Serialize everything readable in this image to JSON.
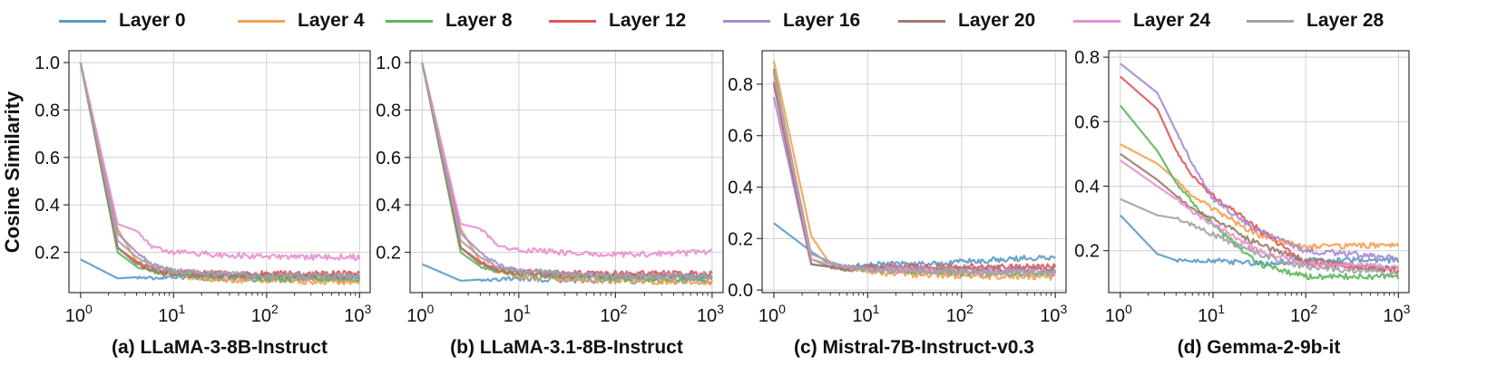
{
  "legend": [
    "Layer 0",
    "Layer 4",
    "Layer 8",
    "Layer 12",
    "Layer 16",
    "Layer 20",
    "Layer 24",
    "Layer 28"
  ],
  "colors": [
    "#5b9bc7",
    "#f6a04d",
    "#5cb85c",
    "#e15759",
    "#a98bd1",
    "#9c7b6e",
    "#e990cf",
    "#a3a3a3"
  ],
  "ylabel": "Cosine Similarity",
  "chart_data": [
    {
      "type": "line",
      "title": "(a) LLaMA-3-8B-Instruct",
      "xscale": "log",
      "xlim": [
        0.75,
        1300
      ],
      "ylim": [
        0.03,
        1.05
      ],
      "yticks": [
        0.2,
        0.4,
        0.6,
        0.8,
        1.0
      ],
      "grid": true,
      "series": [
        {
          "name": "Layer 0",
          "x": [
            1,
            2.5,
            4,
            6,
            10,
            30,
            100,
            1000
          ],
          "y": [
            0.17,
            0.09,
            0.095,
            0.09,
            0.1,
            0.09,
            0.085,
            0.085
          ]
        },
        {
          "name": "Layer 4",
          "x": [
            1,
            2.5,
            4,
            6,
            10,
            30,
            100,
            1000
          ],
          "y": [
            1.0,
            0.3,
            0.16,
            0.12,
            0.1,
            0.085,
            0.08,
            0.075
          ]
        },
        {
          "name": "Layer 8",
          "x": [
            1,
            2.5,
            4,
            6,
            10,
            30,
            100,
            1000
          ],
          "y": [
            1.0,
            0.2,
            0.14,
            0.12,
            0.11,
            0.1,
            0.09,
            0.09
          ]
        },
        {
          "name": "Layer 12",
          "x": [
            1,
            2.5,
            4,
            6,
            10,
            30,
            100,
            1000
          ],
          "y": [
            1.0,
            0.22,
            0.16,
            0.13,
            0.12,
            0.11,
            0.11,
            0.11
          ]
        },
        {
          "name": "Layer 16",
          "x": [
            1,
            2.5,
            4,
            6,
            10,
            30,
            100,
            1000
          ],
          "y": [
            1.0,
            0.28,
            0.2,
            0.15,
            0.12,
            0.11,
            0.1,
            0.1
          ]
        },
        {
          "name": "Layer 20",
          "x": [
            1,
            2.5,
            4,
            6,
            10,
            30,
            100,
            1000
          ],
          "y": [
            1.0,
            0.22,
            0.15,
            0.12,
            0.11,
            0.1,
            0.1,
            0.1
          ]
        },
        {
          "name": "Layer 24",
          "x": [
            1,
            2.5,
            4,
            6,
            10,
            30,
            100,
            1000
          ],
          "y": [
            1.0,
            0.32,
            0.29,
            0.22,
            0.2,
            0.19,
            0.18,
            0.18
          ]
        },
        {
          "name": "Layer 28",
          "x": [
            1,
            2.5,
            4,
            6,
            10,
            30,
            100,
            1000
          ],
          "y": [
            1.0,
            0.25,
            0.18,
            0.14,
            0.12,
            0.11,
            0.1,
            0.1
          ]
        }
      ]
    },
    {
      "type": "line",
      "title": "(b) LLaMA-3.1-8B-Instruct",
      "xscale": "log",
      "xlim": [
        0.75,
        1300
      ],
      "ylim": [
        0.03,
        1.05
      ],
      "yticks": [
        0.2,
        0.4,
        0.6,
        0.8,
        1.0
      ],
      "grid": true,
      "series": [
        {
          "name": "Layer 0",
          "x": [
            1,
            2.5,
            4,
            6,
            10,
            30,
            100,
            1000
          ],
          "y": [
            0.15,
            0.08,
            0.085,
            0.085,
            0.09,
            0.085,
            0.08,
            0.08
          ]
        },
        {
          "name": "Layer 4",
          "x": [
            1,
            2.5,
            4,
            6,
            10,
            30,
            100,
            1000
          ],
          "y": [
            1.0,
            0.3,
            0.16,
            0.12,
            0.1,
            0.085,
            0.08,
            0.075
          ]
        },
        {
          "name": "Layer 8",
          "x": [
            1,
            2.5,
            4,
            6,
            10,
            30,
            100,
            1000
          ],
          "y": [
            1.0,
            0.2,
            0.14,
            0.12,
            0.11,
            0.1,
            0.09,
            0.09
          ]
        },
        {
          "name": "Layer 12",
          "x": [
            1,
            2.5,
            4,
            6,
            10,
            30,
            100,
            1000
          ],
          "y": [
            1.0,
            0.22,
            0.16,
            0.13,
            0.12,
            0.11,
            0.11,
            0.11
          ]
        },
        {
          "name": "Layer 16",
          "x": [
            1,
            2.5,
            4,
            6,
            10,
            30,
            100,
            1000
          ],
          "y": [
            1.0,
            0.28,
            0.2,
            0.15,
            0.12,
            0.11,
            0.1,
            0.1
          ]
        },
        {
          "name": "Layer 20",
          "x": [
            1,
            2.5,
            4,
            6,
            10,
            30,
            100,
            1000
          ],
          "y": [
            1.0,
            0.22,
            0.15,
            0.12,
            0.11,
            0.1,
            0.1,
            0.1
          ]
        },
        {
          "name": "Layer 24",
          "x": [
            1,
            2.5,
            4,
            6,
            10,
            30,
            100,
            1000
          ],
          "y": [
            1.0,
            0.32,
            0.3,
            0.23,
            0.21,
            0.2,
            0.19,
            0.2
          ]
        },
        {
          "name": "Layer 28",
          "x": [
            1,
            2.5,
            4,
            6,
            10,
            30,
            100,
            1000
          ],
          "y": [
            1.0,
            0.25,
            0.18,
            0.14,
            0.12,
            0.11,
            0.1,
            0.1
          ]
        }
      ]
    },
    {
      "type": "line",
      "title": "(c) Mistral-7B-Instruct-v0.3",
      "xscale": "log",
      "xlim": [
        0.75,
        1300
      ],
      "ylim": [
        -0.01,
        0.93
      ],
      "yticks": [
        0.0,
        0.2,
        0.4,
        0.6,
        0.8
      ],
      "grid": true,
      "series": [
        {
          "name": "Layer 0",
          "x": [
            1,
            2.5,
            4,
            6,
            10,
            30,
            100,
            1000
          ],
          "y": [
            0.26,
            0.15,
            0.1,
            0.09,
            0.1,
            0.1,
            0.11,
            0.13
          ]
        },
        {
          "name": "Layer 4",
          "x": [
            1,
            2.5,
            4,
            6,
            10,
            30,
            100,
            1000
          ],
          "y": [
            0.89,
            0.21,
            0.1,
            0.08,
            0.07,
            0.06,
            0.055,
            0.05
          ]
        },
        {
          "name": "Layer 8",
          "x": [
            1,
            2.5,
            4,
            6,
            10,
            30,
            100,
            1000
          ],
          "y": [
            0.86,
            0.12,
            0.09,
            0.08,
            0.08,
            0.07,
            0.065,
            0.065
          ]
        },
        {
          "name": "Layer 12",
          "x": [
            1,
            2.5,
            4,
            6,
            10,
            30,
            100,
            1000
          ],
          "y": [
            0.8,
            0.1,
            0.09,
            0.08,
            0.09,
            0.09,
            0.09,
            0.09
          ]
        },
        {
          "name": "Layer 16",
          "x": [
            1,
            2.5,
            4,
            6,
            10,
            30,
            100,
            1000
          ],
          "y": [
            0.75,
            0.1,
            0.09,
            0.08,
            0.09,
            0.08,
            0.08,
            0.08
          ]
        },
        {
          "name": "Layer 20",
          "x": [
            1,
            2.5,
            4,
            6,
            10,
            30,
            100,
            1000
          ],
          "y": [
            0.81,
            0.1,
            0.09,
            0.08,
            0.09,
            0.08,
            0.08,
            0.08
          ]
        },
        {
          "name": "Layer 24",
          "x": [
            1,
            2.5,
            4,
            6,
            10,
            30,
            100,
            1000
          ],
          "y": [
            0.84,
            0.12,
            0.1,
            0.09,
            0.08,
            0.075,
            0.07,
            0.07
          ]
        },
        {
          "name": "Layer 28",
          "x": [
            1,
            2.5,
            4,
            6,
            10,
            30,
            100,
            1000
          ],
          "y": [
            0.85,
            0.14,
            0.11,
            0.09,
            0.08,
            0.075,
            0.07,
            0.07
          ]
        }
      ]
    },
    {
      "type": "line",
      "title": "(d) Gemma-2-9b-it",
      "xscale": "log",
      "xlim": [
        0.75,
        1300
      ],
      "ylim": [
        0.07,
        0.82
      ],
      "yticks": [
        0.2,
        0.4,
        0.6,
        0.8
      ],
      "grid": true,
      "series": [
        {
          "name": "Layer 0",
          "x": [
            1,
            2.5,
            4,
            6,
            10,
            30,
            100,
            1000
          ],
          "y": [
            0.31,
            0.19,
            0.17,
            0.17,
            0.17,
            0.16,
            0.17,
            0.17
          ]
        },
        {
          "name": "Layer 4",
          "x": [
            1,
            2.5,
            4,
            6,
            10,
            30,
            100,
            1000
          ],
          "y": [
            0.53,
            0.47,
            0.42,
            0.37,
            0.33,
            0.25,
            0.21,
            0.22
          ]
        },
        {
          "name": "Layer 8",
          "x": [
            1,
            2.5,
            4,
            6,
            10,
            30,
            100,
            1000
          ],
          "y": [
            0.65,
            0.51,
            0.41,
            0.35,
            0.28,
            0.16,
            0.12,
            0.12
          ]
        },
        {
          "name": "Layer 12",
          "x": [
            1,
            2.5,
            4,
            6,
            10,
            30,
            100,
            1000
          ],
          "y": [
            0.74,
            0.64,
            0.51,
            0.43,
            0.37,
            0.27,
            0.16,
            0.14
          ]
        },
        {
          "name": "Layer 16",
          "x": [
            1,
            2.5,
            4,
            6,
            10,
            30,
            100,
            1000
          ],
          "y": [
            0.78,
            0.69,
            0.57,
            0.47,
            0.36,
            0.26,
            0.2,
            0.18
          ]
        },
        {
          "name": "Layer 20",
          "x": [
            1,
            2.5,
            4,
            6,
            10,
            30,
            100,
            1000
          ],
          "y": [
            0.5,
            0.42,
            0.37,
            0.33,
            0.3,
            0.22,
            0.17,
            0.14
          ]
        },
        {
          "name": "Layer 24",
          "x": [
            1,
            2.5,
            4,
            6,
            10,
            30,
            100,
            1000
          ],
          "y": [
            0.48,
            0.4,
            0.36,
            0.32,
            0.28,
            0.2,
            0.16,
            0.15
          ]
        },
        {
          "name": "Layer 28",
          "x": [
            1,
            2.5,
            4,
            6,
            10,
            30,
            100,
            1000
          ],
          "y": [
            0.36,
            0.31,
            0.3,
            0.28,
            0.25,
            0.19,
            0.15,
            0.13
          ]
        }
      ]
    }
  ]
}
